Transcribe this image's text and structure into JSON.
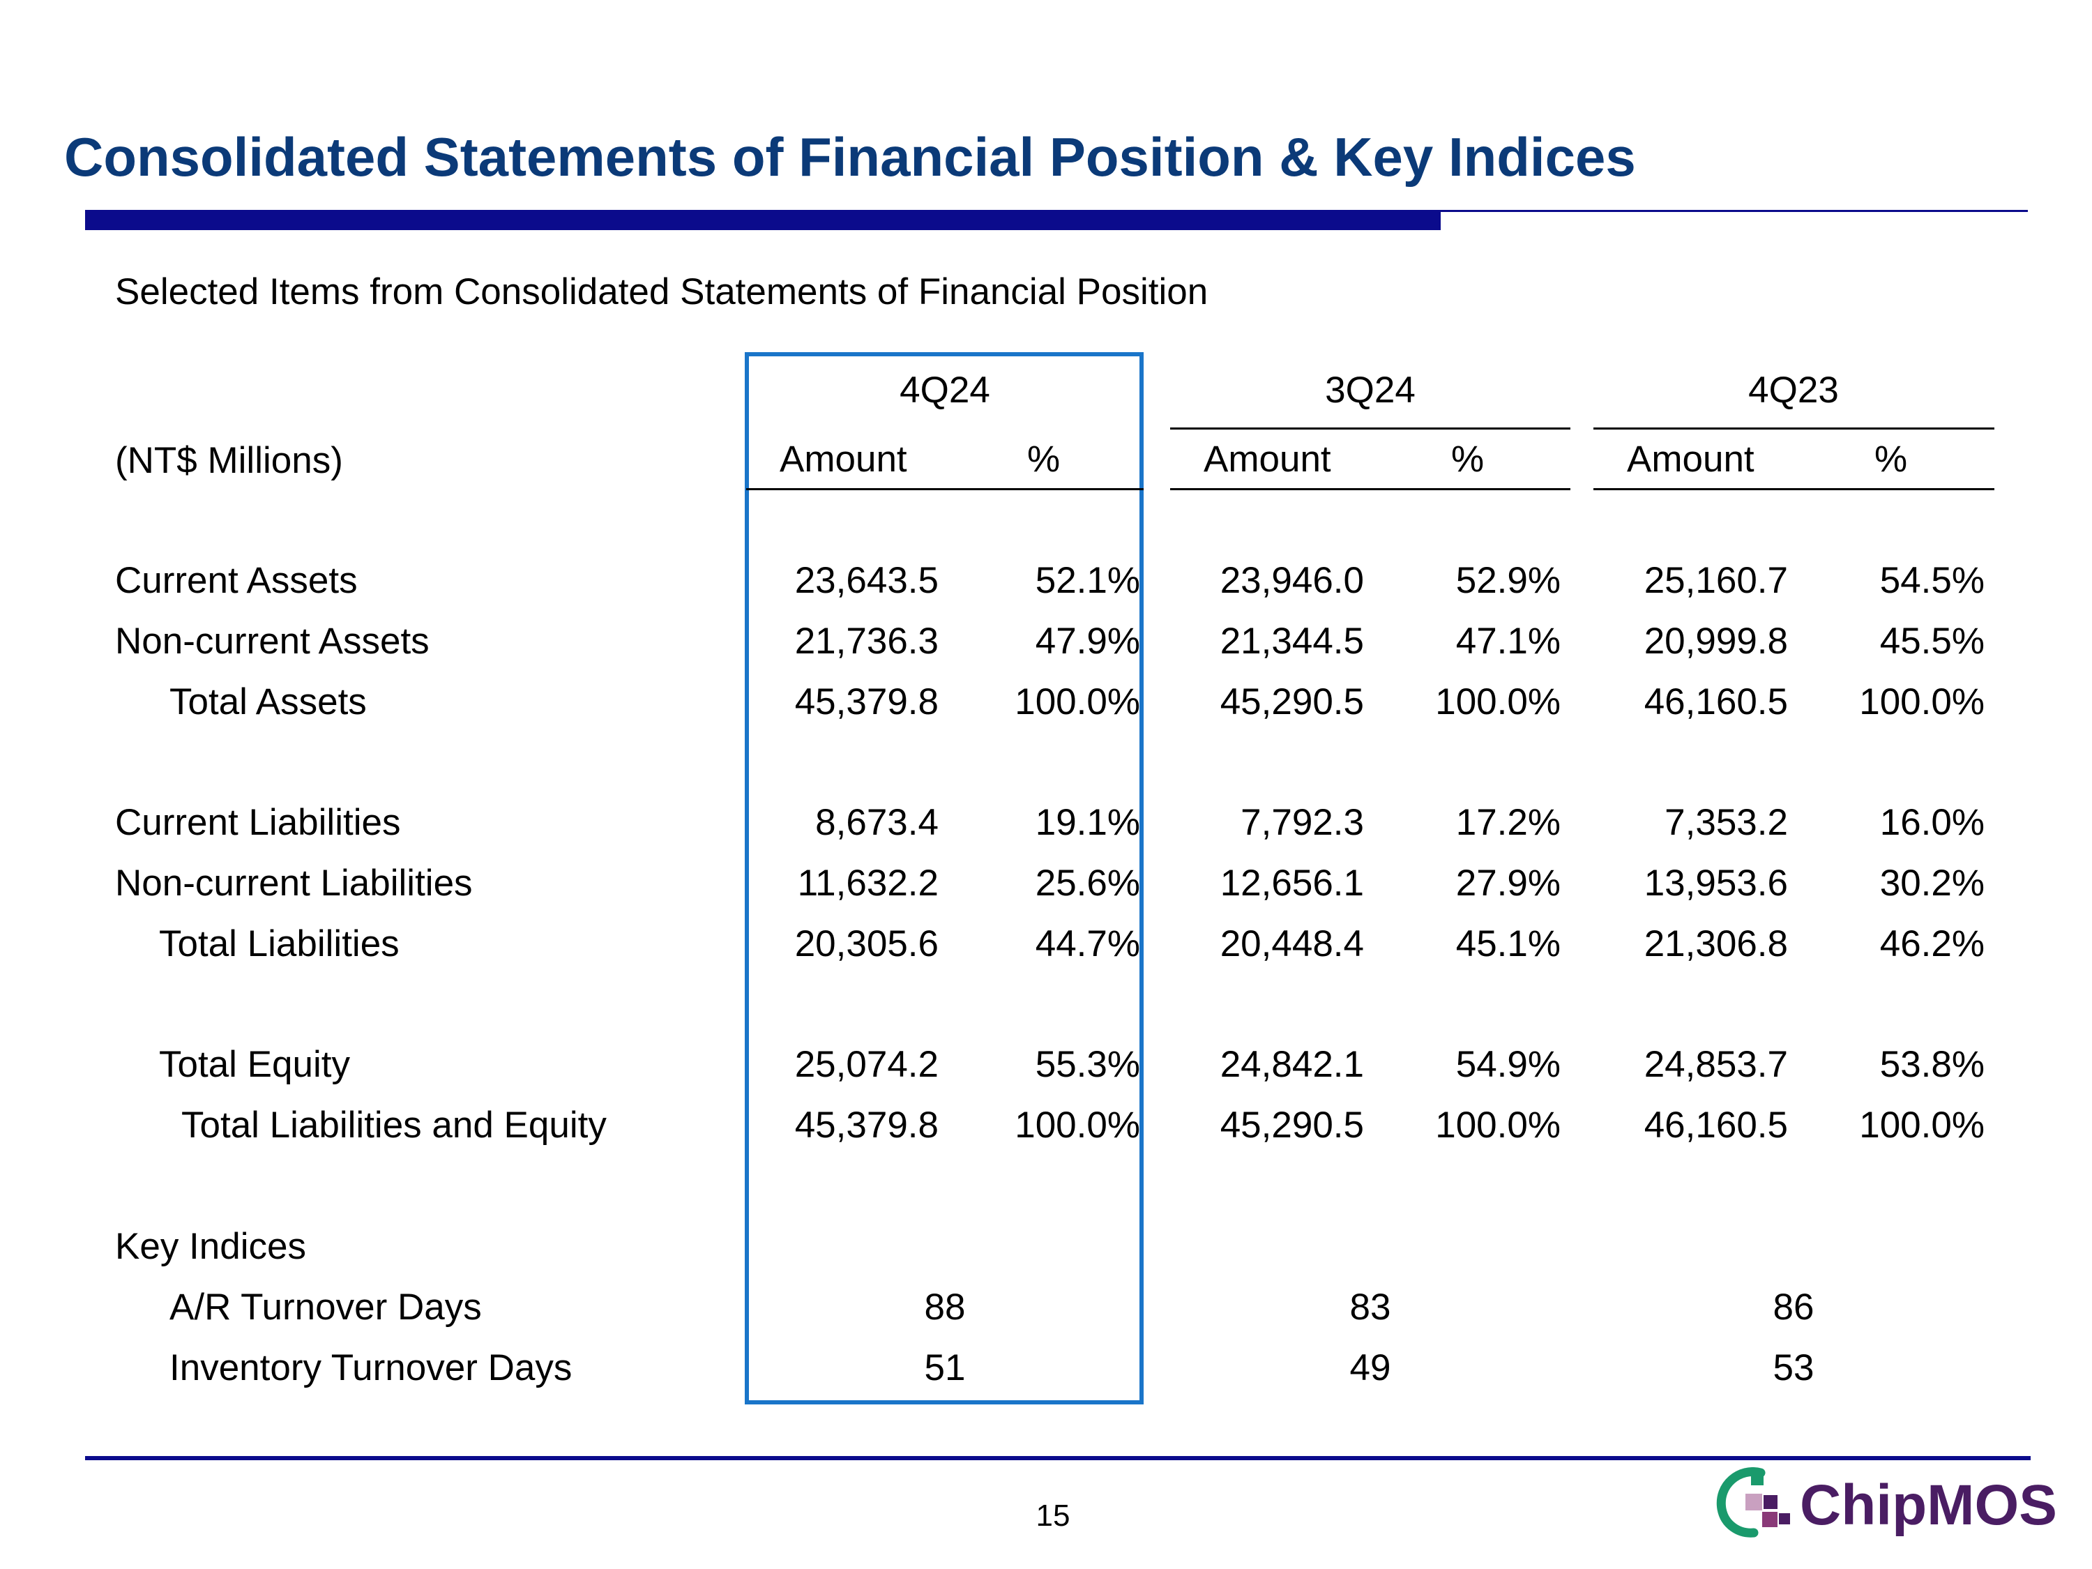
{
  "title": "Consolidated Statements of Financial Position & Key Indices",
  "subtitle": "Selected Items from Consolidated Statements of Financial Position",
  "units_label": "(NT$ Millions)",
  "periods": [
    "4Q24",
    "3Q24",
    "4Q23"
  ],
  "col_labels": {
    "amount": "Amount",
    "pct": "%"
  },
  "rows": [
    {
      "label": "Current Assets",
      "indent": 0,
      "values": [
        "23,643.5",
        "52.1%",
        "23,946.0",
        "52.9%",
        "25,160.7",
        "54.5%"
      ]
    },
    {
      "label": "Non-current Assets",
      "indent": 0,
      "values": [
        "21,736.3",
        "47.9%",
        "21,344.5",
        "47.1%",
        "20,999.8",
        "45.5%"
      ]
    },
    {
      "label": "Total Assets",
      "indent": 2,
      "values": [
        "45,379.8",
        "100.0%",
        "45,290.5",
        "100.0%",
        "46,160.5",
        "100.0%"
      ]
    },
    {
      "label": "Current Liabilities",
      "indent": 0,
      "values": [
        "8,673.4",
        "19.1%",
        "7,792.3",
        "17.2%",
        "7,353.2",
        "16.0%"
      ]
    },
    {
      "label": "Non-current Liabilities",
      "indent": 0,
      "values": [
        "11,632.2",
        "25.6%",
        "12,656.1",
        "27.9%",
        "13,953.6",
        "30.2%"
      ]
    },
    {
      "label": "Total Liabilities",
      "indent": 1,
      "values": [
        "20,305.6",
        "44.7%",
        "20,448.4",
        "45.1%",
        "21,306.8",
        "46.2%"
      ]
    },
    {
      "label": "Total Equity",
      "indent": 1,
      "values": [
        "25,074.2",
        "55.3%",
        "24,842.1",
        "54.9%",
        "24,853.7",
        "53.8%"
      ]
    },
    {
      "label": "Total Liabilities and Equity",
      "indent": 3,
      "values": [
        "45,379.8",
        "100.0%",
        "45,290.5",
        "100.0%",
        "46,160.5",
        "100.0%"
      ]
    }
  ],
  "key_indices": {
    "heading": "Key Indices",
    "rows": [
      {
        "label": "A/R Turnover Days",
        "values": [
          "88",
          "83",
          "86"
        ]
      },
      {
        "label": "Inventory Turnover Days",
        "values": [
          "51",
          "49",
          "53"
        ]
      }
    ]
  },
  "page_number": "15",
  "logo": {
    "text": "ChipMOS",
    "colors": [
      "#1a9a6c",
      "#4a1d63"
    ]
  },
  "colors": {
    "title": "#0b3a78",
    "rule": "#0b0b8c",
    "highlight": "#1a75c9"
  }
}
